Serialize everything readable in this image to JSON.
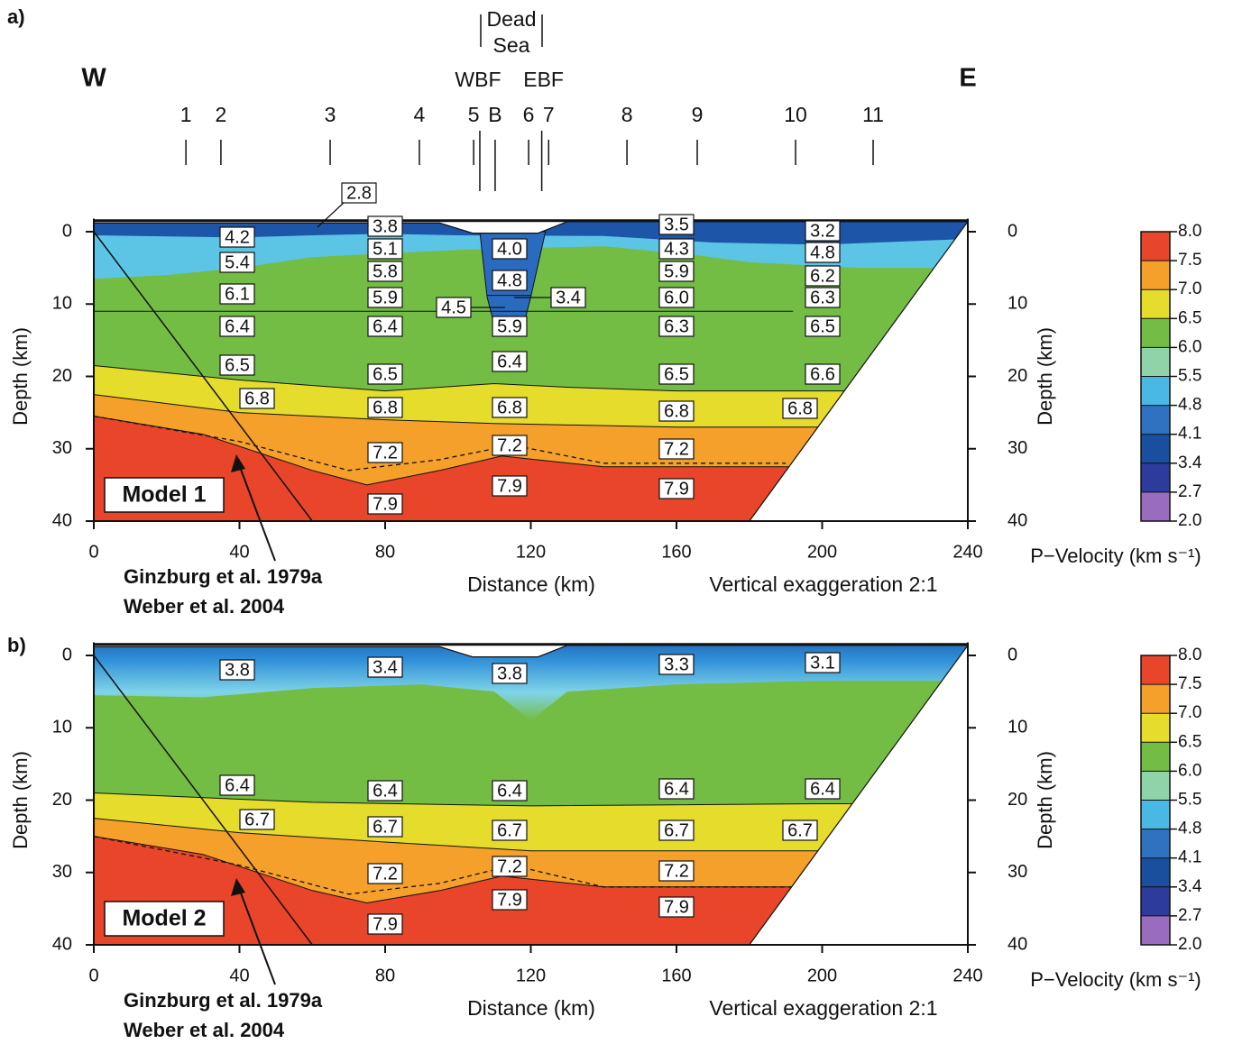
{
  "chart_data": [
    {
      "type": "cross-section",
      "panel": "a)",
      "model": "Model 1",
      "xlabel": "Distance (km)",
      "ylabel": "Depth (km)",
      "note": "Vertical exaggeration 2:1",
      "references": [
        "Ginzburg et al. 1979a",
        "Weber et al. 2004"
      ],
      "xlim": [
        0,
        240
      ],
      "xticks": [
        0,
        40,
        80,
        120,
        160,
        200,
        240
      ],
      "ylim": [
        0,
        40
      ],
      "yticks": [
        0,
        10,
        20,
        30,
        40
      ],
      "west": "W",
      "east": "E",
      "basin": [
        "Dead",
        "Sea"
      ],
      "faults": [
        {
          "label": "WBF",
          "x": 106
        },
        {
          "label": "EBF",
          "x": 123
        }
      ],
      "stations": [
        {
          "label": "1",
          "x": 25.3
        },
        {
          "label": "2",
          "x": 34.9
        },
        {
          "label": "3",
          "x": 64.9
        },
        {
          "label": "4",
          "x": 89.4
        },
        {
          "label": "5",
          "x": 104.3
        },
        {
          "label": "B",
          "x": 110.2
        },
        {
          "label": "6",
          "x": 119.4
        },
        {
          "label": "7",
          "x": 124.9
        },
        {
          "label": "8",
          "x": 146.4
        },
        {
          "label": "9",
          "x": 165.7
        },
        {
          "label": "10",
          "x": 192.7
        },
        {
          "label": "11",
          "x": 214
        }
      ],
      "velocity_labels": [
        "4.2",
        "5.4",
        "6.1",
        "6.4",
        "6.5",
        "6.8",
        "3.8",
        "5.1",
        "5.8",
        "5.9",
        "6.4",
        "6.5",
        "6.8",
        "7.2",
        "7.9",
        "2.8",
        "4.0",
        "4.8",
        "3.4",
        "4.5",
        "5.9",
        "6.4",
        "6.8",
        "7.2",
        "7.9",
        "3.5",
        "4.3",
        "5.9",
        "6.0",
        "6.3",
        "6.5",
        "6.8",
        "7.2",
        "7.9",
        "3.2",
        "4.8",
        "6.2",
        "6.3",
        "6.5",
        "6.6",
        "6.8"
      ],
      "colorbar": {
        "label": "P−Velocity (km s⁻¹)",
        "ticks": [
          {
            "value": 8,
            "label": "8.0"
          },
          {
            "value": 7.5,
            "label": "7.5"
          },
          {
            "value": 7,
            "label": "7.0"
          },
          {
            "value": 6.5,
            "label": "6.5"
          },
          {
            "value": 6,
            "label": "6.0"
          },
          {
            "value": 5.5,
            "label": "5.5"
          },
          {
            "value": 4.8,
            "label": "4.8"
          },
          {
            "value": 4.1,
            "label": "4.1"
          },
          {
            "value": 3.4,
            "label": "3.4"
          },
          {
            "value": 2.7,
            "label": "2.7"
          },
          {
            "value": 2,
            "label": "2.0"
          }
        ],
        "colors": [
          "#e8452a",
          "#f5a02a",
          "#e6dc2c",
          "#74bd45",
          "#8fd3a8",
          "#4ab8e4",
          "#2f72c0",
          "#1a4fa0",
          "#2c3b9c",
          "#9a6cc0"
        ]
      }
    },
    {
      "type": "cross-section",
      "panel": "b)",
      "model": "Model 2",
      "xlabel": "Distance (km)",
      "ylabel": "Depth (km)",
      "note": "Vertical exaggeration 2:1",
      "references": [
        "Ginzburg et al. 1979a",
        "Weber et al. 2004"
      ],
      "xlim": [
        0,
        240
      ],
      "xticks": [
        0,
        40,
        80,
        120,
        160,
        200,
        240
      ],
      "ylim": [
        0,
        40
      ],
      "yticks": [
        0,
        10,
        20,
        30,
        40
      ],
      "velocity_labels": [
        "3.8",
        "3.4",
        "3.8",
        "3.3",
        "3.1",
        "6.4",
        "6.7",
        "6.4",
        "6.7",
        "7.2",
        "7.9",
        "6.4",
        "6.7",
        "7.2",
        "7.9",
        "6.4",
        "6.7",
        "7.2",
        "7.9",
        "6.4",
        "6.7"
      ],
      "colorbar": {
        "label": "P−Velocity (km s⁻¹)",
        "ticks": [
          {
            "value": 8,
            "label": "8.0"
          },
          {
            "value": 7.5,
            "label": "7.5"
          },
          {
            "value": 7,
            "label": "7.0"
          },
          {
            "value": 6.5,
            "label": "6.5"
          },
          {
            "value": 6,
            "label": "6.0"
          },
          {
            "value": 5.5,
            "label": "5.5"
          },
          {
            "value": 4.8,
            "label": "4.8"
          },
          {
            "value": 4.1,
            "label": "4.1"
          },
          {
            "value": 3.4,
            "label": "3.4"
          },
          {
            "value": 2.7,
            "label": "2.7"
          },
          {
            "value": 2,
            "label": "2.0"
          }
        ],
        "colors": [
          "#e8452a",
          "#f5a02a",
          "#e6dc2c",
          "#74bd45",
          "#8fd3a8",
          "#4ab8e4",
          "#2f72c0",
          "#1a4fa0",
          "#2c3b9c",
          "#9a6cc0"
        ]
      }
    }
  ]
}
